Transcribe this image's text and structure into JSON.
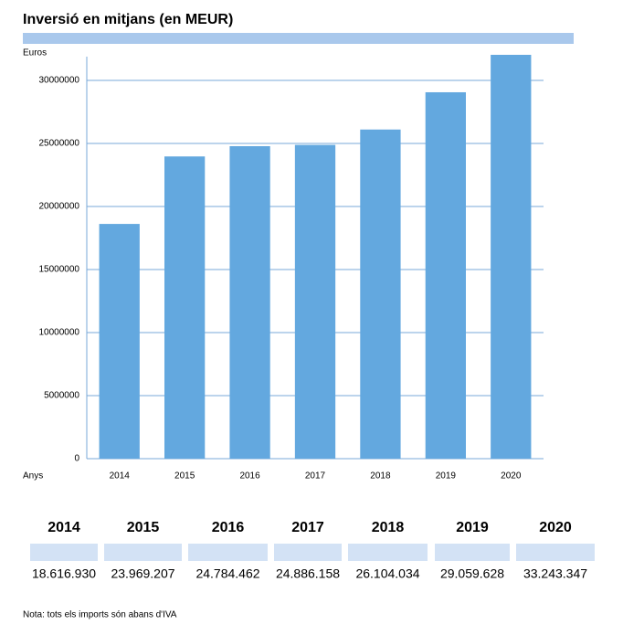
{
  "chart_data": {
    "type": "bar",
    "title": "Inversió en mitjans (en MEUR)",
    "y_label": "Euros",
    "x_label": "Anys",
    "categories": [
      "2014",
      "2015",
      "2016",
      "2017",
      "2018",
      "2019",
      "2020"
    ],
    "values": [
      18616930,
      23969207,
      24784462,
      24886158,
      26104034,
      29059628,
      33243347
    ],
    "color": "#63a8df",
    "ylim": [
      0,
      32000000
    ],
    "yticks": [
      0,
      5000000,
      10000000,
      15000000,
      20000000,
      25000000,
      30000000
    ],
    "grid": true
  },
  "table": {
    "years": [
      "2014",
      "2015",
      "2016",
      "2017",
      "2018",
      "2019",
      "2020"
    ],
    "values": [
      "18.616.930",
      "23.969.207",
      "24.784.462",
      "24.886.158",
      "26.104.034",
      "29.059.628",
      "33.243.347"
    ]
  },
  "note": "Nota: tots els imports són abans d'IVA"
}
